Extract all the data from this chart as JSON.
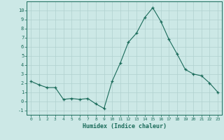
{
  "x": [
    0,
    1,
    2,
    3,
    4,
    5,
    6,
    7,
    8,
    9,
    10,
    11,
    12,
    13,
    14,
    15,
    16,
    17,
    18,
    19,
    20,
    21,
    22,
    23
  ],
  "y": [
    2.2,
    1.8,
    1.5,
    1.5,
    0.2,
    0.3,
    0.2,
    0.3,
    -0.3,
    -0.8,
    2.2,
    4.2,
    6.5,
    7.5,
    9.2,
    10.3,
    8.8,
    6.8,
    5.2,
    3.5,
    3.0,
    2.8,
    2.0,
    1.0
  ],
  "xlabel": "Humidex (Indice chaleur)",
  "ylim": [
    -1.5,
    11
  ],
  "xlim": [
    -0.5,
    23.5
  ],
  "yticks": [
    -1,
    0,
    1,
    2,
    3,
    4,
    5,
    6,
    7,
    8,
    9,
    10
  ],
  "xticks": [
    0,
    1,
    2,
    3,
    4,
    5,
    6,
    7,
    8,
    9,
    10,
    11,
    12,
    13,
    14,
    15,
    16,
    17,
    18,
    19,
    20,
    21,
    22,
    23
  ],
  "line_color": "#1a6b5a",
  "marker_color": "#1a6b5a",
  "bg_color": "#cce8e6",
  "grid_color": "#b0d0ce",
  "xlabel_color": "#1a6b5a",
  "tick_color": "#1a6b5a",
  "font_family": "monospace"
}
